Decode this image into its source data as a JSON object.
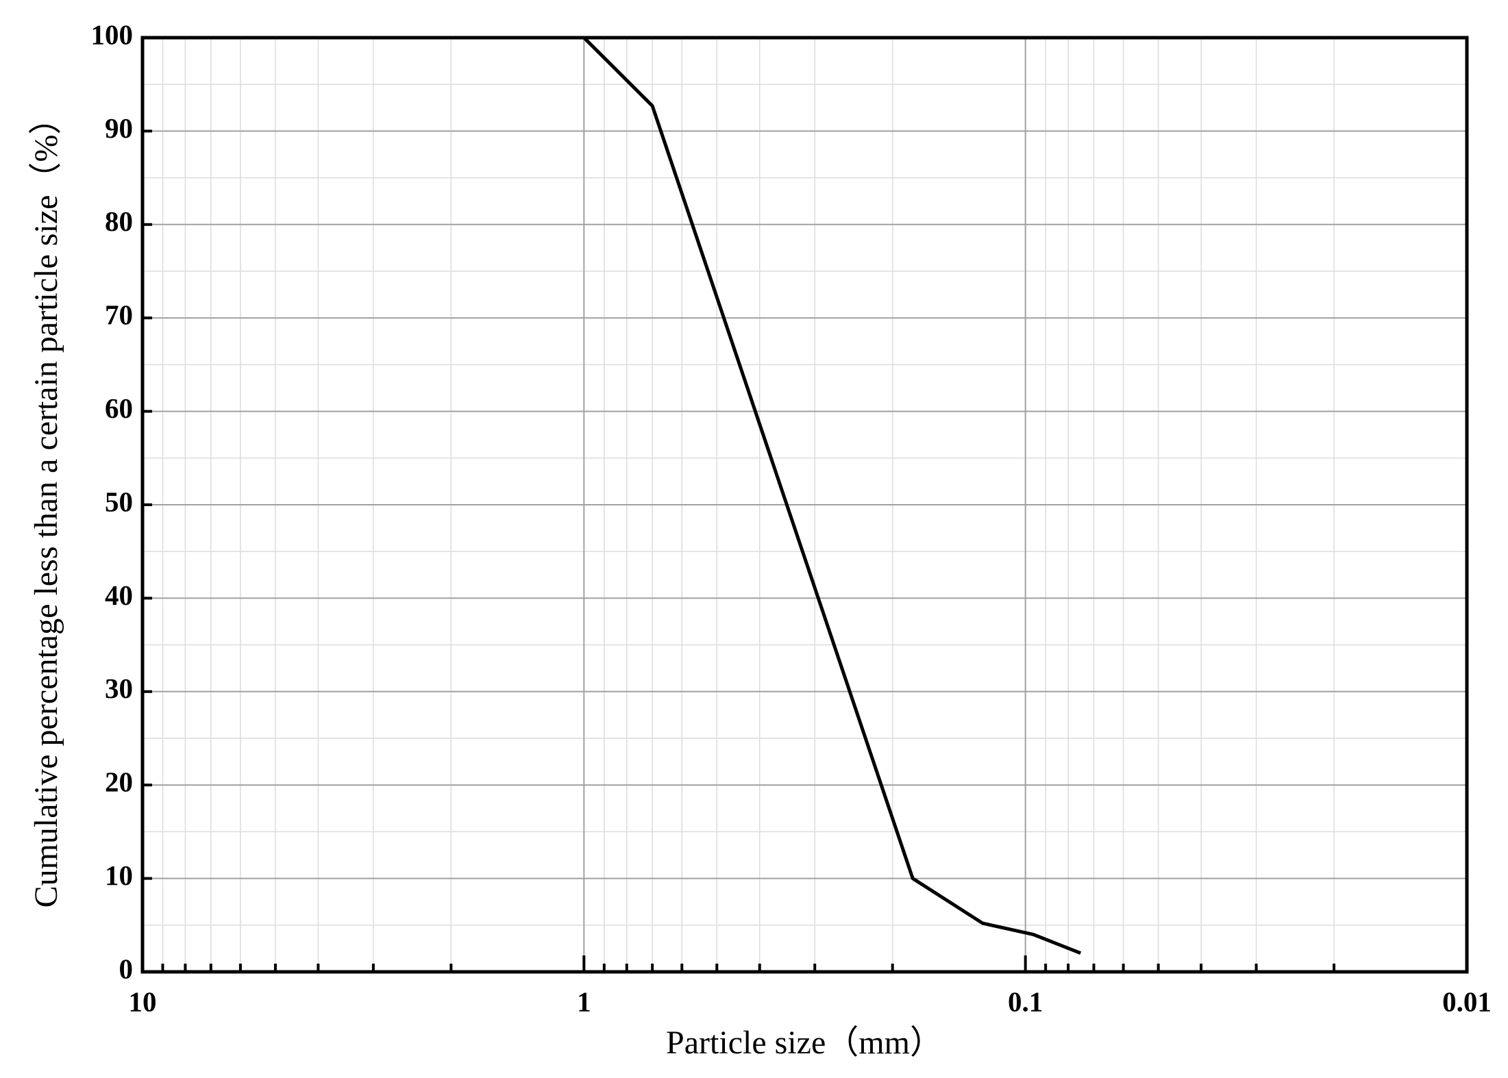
{
  "chart_data": {
    "type": "line",
    "x_label": "Particle size（mm）",
    "y_label": "Cumulative percentage less than a certain particle size（%）",
    "x": [
      1,
      0.7,
      0.18,
      0.125,
      0.096,
      0.075
    ],
    "series": [
      {
        "color": "#000000",
        "values": [
          100,
          92.7,
          10,
          5.2,
          4,
          2
        ]
      }
    ],
    "x_log": true,
    "x_reversed": true,
    "xlim": [
      10,
      0.01
    ],
    "xticks": [
      10,
      1,
      0.1,
      0.01
    ],
    "ylim": [
      0,
      100
    ],
    "yticks": [
      0,
      10,
      20,
      30,
      40,
      50,
      60,
      70,
      80,
      90,
      100
    ],
    "grid": true,
    "minor_grid": true
  }
}
